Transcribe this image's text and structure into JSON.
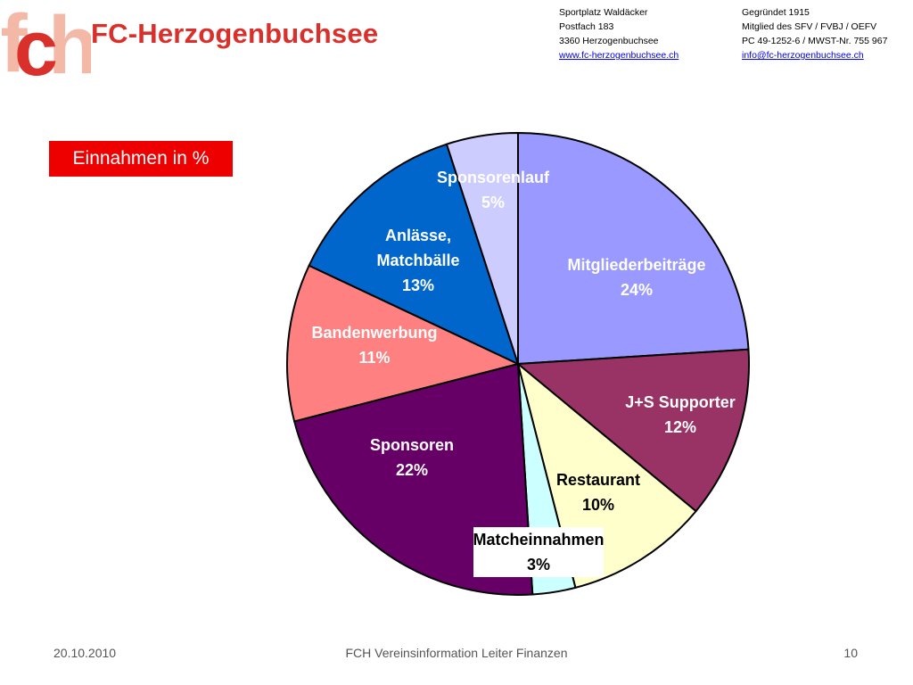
{
  "header": {
    "logo_mark": "fch",
    "club_name": "FC-Herzogenbuchsee",
    "address": [
      "Sportplatz Waldäcker",
      "Postfach 183",
      "3360 Herzogenbuchsee"
    ],
    "website": "www.fc-herzogenbuchsee.ch",
    "founded": "Gegründet 1915",
    "membership": "Mitglied des SFV / FVBJ / OEFV",
    "account": "PC 49-1252-6 / MWST-Nr. 755 967",
    "email": "info@fc-herzogenbuchsee.ch"
  },
  "slide": {
    "badge": "Einnahmen in %"
  },
  "chart_data": {
    "type": "pie",
    "title": "Einnahmen in %",
    "start_angle_deg": 0,
    "direction": "clockwise",
    "slices": [
      {
        "label": "Mitgliederbeiträge",
        "value": 24,
        "value_label": "24%",
        "color": "#9999ff",
        "text_color": "#ffffff"
      },
      {
        "label": "J+S Supporter",
        "value": 12,
        "value_label": "12%",
        "color": "#993366",
        "text_color": "#ffffff"
      },
      {
        "label": "Restaurant",
        "value": 10,
        "value_label": "10%",
        "color": "#ffffcc",
        "text_color": "#000000"
      },
      {
        "label": "Matcheinnahmen",
        "value": 3,
        "value_label": "3%",
        "color": "#ccffff",
        "text_color": "#000000"
      },
      {
        "label": "Sponsoren",
        "value": 22,
        "value_label": "22%",
        "color": "#660066",
        "text_color": "#ffffff"
      },
      {
        "label": "Bandenwerbung",
        "value": 11,
        "value_label": "11%",
        "color": "#ff8080",
        "text_color": "#ffffff"
      },
      {
        "label": "Anlässe, Matchbälle",
        "label_lines": [
          "Anlässe,",
          "Matchbälle"
        ],
        "value": 13,
        "value_label": "13%",
        "color": "#0066cc",
        "text_color": "#ffffff"
      },
      {
        "label": "Sponsorenlauf",
        "value": 5,
        "value_label": "5%",
        "color": "#ccccff",
        "text_color": "#ffffff"
      }
    ]
  },
  "footer": {
    "date": "20.10.2010",
    "title": "FCH Vereinsinformation Leiter Finanzen",
    "page": "10"
  }
}
